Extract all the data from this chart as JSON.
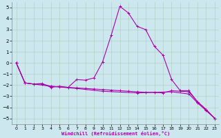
{
  "title": "",
  "xlabel": "Windchill (Refroidissement éolien,°C)",
  "background_color": "#cce8ee",
  "grid_color": "#aaccbb",
  "line_color": "#aa00aa",
  "xlim": [
    -0.5,
    23.5
  ],
  "ylim": [
    -5.5,
    5.5
  ],
  "yticks": [
    -5,
    -4,
    -3,
    -2,
    -1,
    0,
    1,
    2,
    3,
    4,
    5
  ],
  "xticks": [
    0,
    1,
    2,
    3,
    4,
    5,
    6,
    7,
    8,
    9,
    10,
    11,
    12,
    13,
    14,
    15,
    16,
    17,
    18,
    19,
    20,
    21,
    22,
    23
  ],
  "series1": [
    [
      0,
      0.0
    ],
    [
      1,
      -1.8
    ],
    [
      2,
      -1.9
    ],
    [
      3,
      -1.85
    ],
    [
      4,
      -2.2
    ],
    [
      5,
      -2.1
    ],
    [
      6,
      -2.2
    ],
    [
      7,
      -1.5
    ],
    [
      8,
      -1.55
    ],
    [
      9,
      -1.35
    ],
    [
      10,
      0.1
    ],
    [
      11,
      2.5
    ],
    [
      12,
      5.1
    ],
    [
      13,
      4.5
    ],
    [
      14,
      3.3
    ],
    [
      15,
      3.0
    ],
    [
      16,
      1.5
    ],
    [
      17,
      0.7
    ],
    [
      18,
      -1.5
    ],
    [
      19,
      -2.5
    ],
    [
      20,
      -2.5
    ],
    [
      21,
      -3.5
    ],
    [
      22,
      -4.2
    ],
    [
      23,
      -5.0
    ]
  ],
  "series2": [
    [
      0,
      0.0
    ],
    [
      1,
      -1.8
    ],
    [
      2,
      -1.9
    ],
    [
      3,
      -1.9
    ],
    [
      4,
      -2.1
    ],
    [
      5,
      -2.15
    ],
    [
      6,
      -2.2
    ],
    [
      7,
      -2.25
    ],
    [
      8,
      -2.3
    ],
    [
      9,
      -2.35
    ],
    [
      10,
      -2.4
    ],
    [
      11,
      -2.45
    ],
    [
      12,
      -2.5
    ],
    [
      13,
      -2.55
    ],
    [
      14,
      -2.6
    ],
    [
      15,
      -2.65
    ],
    [
      16,
      -2.65
    ],
    [
      17,
      -2.7
    ],
    [
      18,
      -2.5
    ],
    [
      19,
      -2.55
    ],
    [
      20,
      -2.6
    ],
    [
      21,
      -3.5
    ],
    [
      22,
      -4.2
    ],
    [
      23,
      -5.0
    ]
  ],
  "series3": [
    [
      0,
      0.0
    ],
    [
      1,
      -1.8
    ],
    [
      4,
      -2.1
    ],
    [
      7,
      -2.3
    ],
    [
      10,
      -2.55
    ],
    [
      14,
      -2.7
    ],
    [
      18,
      -2.6
    ],
    [
      20,
      -2.8
    ],
    [
      21,
      -3.6
    ],
    [
      22,
      -4.3
    ],
    [
      23,
      -5.0
    ]
  ]
}
